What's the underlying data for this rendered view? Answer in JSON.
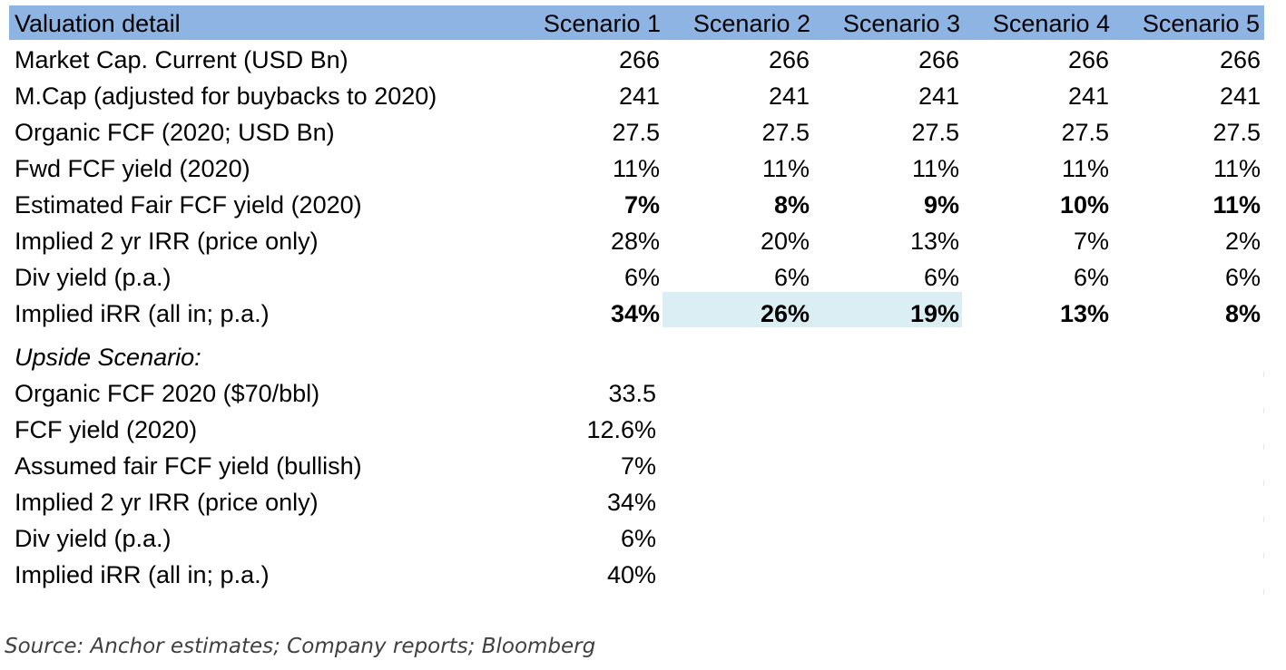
{
  "header": {
    "title": "Valuation detail",
    "scenarios": [
      "Scenario 1",
      "Scenario 2",
      "Scenario 3",
      "Scenario 4",
      "Scenario 5"
    ]
  },
  "rows": [
    {
      "label": "Market Cap. Current (USD Bn)",
      "values": [
        "266",
        "266",
        "266",
        "266",
        "266"
      ],
      "bold": false
    },
    {
      "label": "M.Cap (adjusted for buybacks to 2020)",
      "values": [
        "241",
        "241",
        "241",
        "241",
        "241"
      ],
      "bold": false
    },
    {
      "label": "Organic FCF (2020; USD Bn)",
      "values": [
        "27.5",
        "27.5",
        "27.5",
        "27.5",
        "27.5"
      ],
      "bold": false
    },
    {
      "label": "Fwd FCF yield (2020)",
      "values": [
        "11%",
        "11%",
        "11%",
        "11%",
        "11%"
      ],
      "bold": false
    },
    {
      "label": "Estimated Fair FCF yield (2020)",
      "values": [
        "7%",
        "8%",
        "9%",
        "10%",
        "11%"
      ],
      "bold": true
    },
    {
      "label": "Implied 2 yr IRR (price only)",
      "values": [
        "28%",
        "20%",
        "13%",
        "7%",
        "2%"
      ],
      "bold": false
    },
    {
      "label": "Div yield (p.a.)",
      "values": [
        "6%",
        "6%",
        "6%",
        "6%",
        "6%"
      ],
      "bold": false
    },
    {
      "label": "Implied iRR (all in; p.a.)",
      "values": [
        "34%",
        "26%",
        "19%",
        "13%",
        "8%"
      ],
      "bold": true
    }
  ],
  "upside": {
    "title": "Upside Scenario:",
    "rows": [
      {
        "label": "Organic FCF 2020 ($70/bbl)",
        "value": "33.5"
      },
      {
        "label": "FCF yield (2020)",
        "value": "12.6%"
      },
      {
        "label": "Assumed fair FCF yield (bullish)",
        "value": "7%"
      },
      {
        "label": "Implied 2 yr IRR (price only)",
        "value": "34%"
      },
      {
        "label": "Div yield (p.a.)",
        "value": "6%"
      },
      {
        "label": "Implied iRR (all in; p.a.)",
        "value": "40%"
      }
    ]
  },
  "source": "Source: Anchor estimates; Company reports; Bloomberg",
  "colors": {
    "header_bg": "#8db4e2",
    "highlight_bg": "#dbeef4"
  }
}
